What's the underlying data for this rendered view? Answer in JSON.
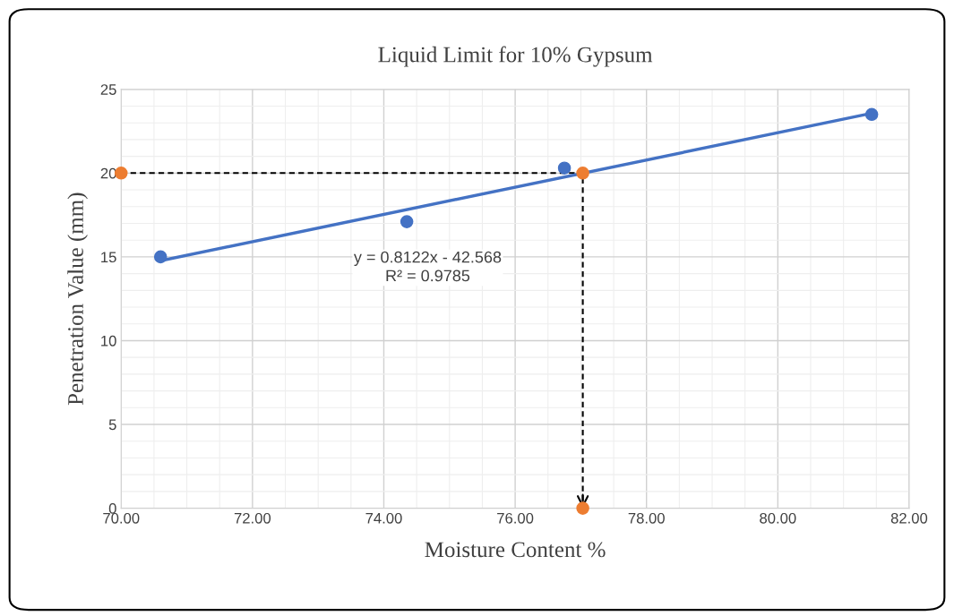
{
  "chart_data": {
    "type": "scatter",
    "title": "Liquid Limit for 10% Gypsum",
    "xlabel": "Moisture Content %",
    "ylabel": "Penetration Value (mm)",
    "xlim": [
      70,
      82
    ],
    "xticks": [
      {
        "value": 70,
        "label": "70.00"
      },
      {
        "value": 72,
        "label": "72.00"
      },
      {
        "value": 74,
        "label": "74.00"
      },
      {
        "value": 76,
        "label": "76.00"
      },
      {
        "value": 78,
        "label": "78.00"
      },
      {
        "value": 80,
        "label": "80.00"
      },
      {
        "value": 82,
        "label": "82.00"
      }
    ],
    "ylim": [
      0,
      25
    ],
    "yticks": [
      0,
      5,
      10,
      15,
      20,
      25
    ],
    "grid": true,
    "marker": "circle",
    "series": [
      {
        "type": "line",
        "color": "#000000",
        "line_style": "dashed",
        "marker": "none",
        "x": [
          70,
          77.03,
          77.03
        ],
        "values": [
          20,
          20,
          0
        ]
      },
      {
        "type": "line",
        "color": "#4472c4",
        "line_style": "solid",
        "marker": "none",
        "x": [
          70.6,
          81.43
        ],
        "values": [
          14.77,
          23.57
        ]
      },
      {
        "color": "#4472c4",
        "x": [
          70.6,
          74.35,
          76.75,
          81.43
        ],
        "values": [
          15.0,
          17.1,
          20.3,
          23.5
        ]
      },
      {
        "color": "#ed7d31",
        "x": [
          70,
          77.03,
          77.03
        ],
        "values": [
          20,
          20,
          0
        ]
      }
    ],
    "annotations": [
      "y = 0.8122x - 42.568\nR² = 0.9785"
    ]
  }
}
